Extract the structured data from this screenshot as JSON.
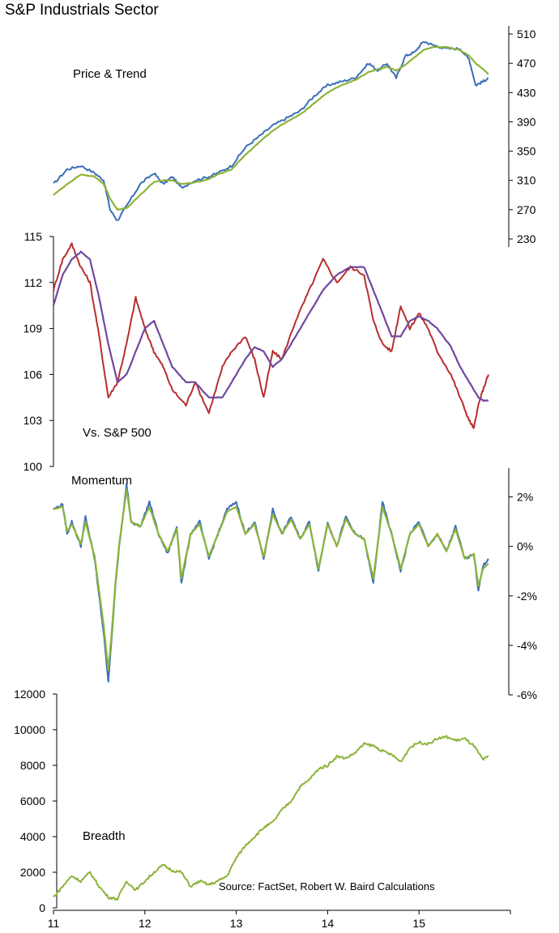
{
  "title": "S&P Industrials Sector",
  "source_note": "Source: FactSet, Robert W. Baird Calculations",
  "colors": {
    "blue": "#3A6EB8",
    "green": "#8DB33A",
    "red": "#B82E2E",
    "purple": "#7048A0",
    "axis": "#000000"
  },
  "x_axis": {
    "ticks": [
      {
        "value": 2011,
        "label": "11"
      },
      {
        "value": 2012,
        "label": "12"
      },
      {
        "value": 2013,
        "label": "13"
      },
      {
        "value": 2014,
        "label": "14"
      },
      {
        "value": 2015,
        "label": "15"
      }
    ],
    "range": [
      2011,
      2016
    ]
  },
  "chart_data": [
    {
      "type": "line",
      "panel": "price",
      "label": "Price & Trend",
      "y_axis_side": "right",
      "ylim": [
        230,
        510
      ],
      "yticks": [
        230,
        270,
        310,
        350,
        390,
        430,
        470,
        510
      ],
      "ytick_labels": [
        "230",
        "270",
        "310",
        "350",
        "390",
        "430",
        "470",
        "510"
      ],
      "x": [
        2011.0,
        2011.15,
        2011.3,
        2011.45,
        2011.55,
        2011.62,
        2011.7,
        2011.8,
        2011.95,
        2012.1,
        2012.2,
        2012.3,
        2012.4,
        2012.55,
        2012.7,
        2012.8,
        2012.95,
        2013.1,
        2013.25,
        2013.4,
        2013.55,
        2013.7,
        2013.85,
        2014.0,
        2014.15,
        2014.3,
        2014.45,
        2014.55,
        2014.65,
        2014.75,
        2014.85,
        2014.95,
        2015.05,
        2015.15,
        2015.3,
        2015.45,
        2015.55,
        2015.62,
        2015.7,
        2015.76
      ],
      "series": [
        {
          "values": [
            305,
            325,
            330,
            320,
            310,
            270,
            255,
            275,
            305,
            320,
            305,
            315,
            300,
            310,
            315,
            320,
            330,
            355,
            370,
            385,
            395,
            405,
            425,
            440,
            445,
            450,
            470,
            460,
            470,
            450,
            480,
            485,
            500,
            495,
            490,
            490,
            475,
            440,
            445,
            450
          ],
          "color_key": "blue"
        },
        {
          "values": [
            290,
            305,
            318,
            315,
            305,
            285,
            270,
            272,
            290,
            308,
            310,
            310,
            305,
            307,
            312,
            318,
            325,
            345,
            362,
            378,
            390,
            400,
            415,
            430,
            440,
            447,
            458,
            462,
            465,
            460,
            468,
            478,
            488,
            492,
            492,
            488,
            480,
            470,
            462,
            455
          ],
          "color_key": "green"
        }
      ]
    },
    {
      "type": "line",
      "panel": "relative",
      "label": "Vs. S&P 500",
      "y_axis_side": "left",
      "ylim": [
        100,
        115
      ],
      "yticks": [
        100,
        103,
        106,
        109,
        112,
        115
      ],
      "ytick_labels": [
        "100",
        "103",
        "106",
        "109",
        "112",
        "115"
      ],
      "x": [
        2011.0,
        2011.1,
        2011.2,
        2011.3,
        2011.4,
        2011.5,
        2011.6,
        2011.7,
        2011.8,
        2011.9,
        2012.0,
        2012.1,
        2012.2,
        2012.3,
        2012.45,
        2012.55,
        2012.7,
        2012.85,
        2012.95,
        2013.1,
        2013.2,
        2013.3,
        2013.4,
        2013.5,
        2013.65,
        2013.8,
        2013.95,
        2014.1,
        2014.25,
        2014.4,
        2014.5,
        2014.6,
        2014.7,
        2014.8,
        2014.9,
        2015.0,
        2015.1,
        2015.2,
        2015.35,
        2015.45,
        2015.55,
        2015.6,
        2015.65,
        2015.7,
        2015.76
      ],
      "series": [
        {
          "values": [
            111.5,
            113.5,
            114.5,
            113.0,
            112.0,
            108.5,
            104.5,
            105.5,
            108.0,
            111.0,
            109.0,
            107.5,
            106.5,
            105.0,
            104.0,
            105.5,
            103.5,
            106.5,
            107.5,
            108.5,
            107.0,
            104.5,
            107.5,
            107.0,
            109.5,
            111.5,
            113.5,
            112.0,
            113.0,
            112.5,
            109.5,
            108.0,
            107.5,
            110.5,
            109.0,
            110.0,
            109.0,
            107.5,
            106.0,
            104.5,
            103.0,
            102.5,
            104.0,
            105.0,
            106.0
          ],
          "color_key": "red"
        },
        {
          "values": [
            110.5,
            112.5,
            113.5,
            114.0,
            113.5,
            111.0,
            108.0,
            105.5,
            106.0,
            107.5,
            109.0,
            109.5,
            108.0,
            106.5,
            105.5,
            105.5,
            104.5,
            104.5,
            105.5,
            107.0,
            107.8,
            107.5,
            106.5,
            107.0,
            108.5,
            110.0,
            111.5,
            112.5,
            113.0,
            113.0,
            111.5,
            110.0,
            108.5,
            108.5,
            109.5,
            109.8,
            109.5,
            109.0,
            107.8,
            106.5,
            105.5,
            105.0,
            104.5,
            104.3,
            104.3
          ],
          "color_key": "purple"
        }
      ]
    },
    {
      "type": "line",
      "panel": "momentum",
      "label": "Momentum",
      "y_axis_side": "right",
      "ylim": [
        -6,
        3
      ],
      "yticks": [
        -6,
        -4,
        -2,
        0,
        2
      ],
      "ytick_labels": [
        "-6%",
        "-4%",
        "-2%",
        "0%",
        "2%"
      ],
      "x": [
        2011.0,
        2011.1,
        2011.15,
        2011.2,
        2011.3,
        2011.35,
        2011.45,
        2011.5,
        2011.55,
        2011.6,
        2011.63,
        2011.68,
        2011.72,
        2011.8,
        2011.85,
        2011.95,
        2012.05,
        2012.15,
        2012.25,
        2012.35,
        2012.4,
        2012.5,
        2012.6,
        2012.7,
        2012.8,
        2012.9,
        2013.0,
        2013.1,
        2013.2,
        2013.3,
        2013.4,
        2013.5,
        2013.6,
        2013.7,
        2013.8,
        2013.9,
        2014.0,
        2014.1,
        2014.2,
        2014.3,
        2014.4,
        2014.5,
        2014.6,
        2014.7,
        2014.8,
        2014.9,
        2015.0,
        2015.1,
        2015.2,
        2015.3,
        2015.4,
        2015.5,
        2015.6,
        2015.65,
        2015.7,
        2015.76
      ],
      "series": [
        {
          "values": [
            1.5,
            1.7,
            0.5,
            1.0,
            0.0,
            1.2,
            -0.5,
            -2.0,
            -3.5,
            -5.5,
            -4.0,
            -1.5,
            0.0,
            2.5,
            1.0,
            0.8,
            1.8,
            0.5,
            -0.3,
            0.8,
            -1.5,
            0.5,
            1.0,
            -0.5,
            0.5,
            1.5,
            1.8,
            0.5,
            1.0,
            -0.5,
            1.5,
            0.5,
            1.2,
            0.3,
            1.0,
            -1.0,
            1.0,
            0.0,
            1.2,
            0.5,
            0.3,
            -1.5,
            1.8,
            0.5,
            -1.0,
            0.5,
            1.0,
            0.0,
            0.5,
            -0.2,
            0.8,
            -0.5,
            -0.3,
            -1.8,
            -0.8,
            -0.5
          ],
          "color_key": "blue"
        },
        {
          "values": [
            1.5,
            1.6,
            0.6,
            0.9,
            0.1,
            1.0,
            -0.4,
            -1.8,
            -3.2,
            -5.0,
            -3.8,
            -1.4,
            0.1,
            2.3,
            1.0,
            0.8,
            1.6,
            0.5,
            -0.2,
            0.7,
            -1.3,
            0.5,
            0.9,
            -0.4,
            0.5,
            1.4,
            1.6,
            0.5,
            0.9,
            -0.4,
            1.3,
            0.5,
            1.1,
            0.3,
            0.9,
            -0.9,
            0.9,
            0.0,
            1.1,
            0.5,
            0.3,
            -1.3,
            1.6,
            0.5,
            -0.9,
            0.5,
            0.9,
            0.0,
            0.5,
            -0.2,
            0.7,
            -0.5,
            -0.3,
            -1.6,
            -0.9,
            -0.7
          ],
          "color_key": "green"
        }
      ]
    },
    {
      "type": "line",
      "panel": "breadth",
      "label": "Breadth",
      "y_axis_side": "left",
      "ylim": [
        0,
        12000
      ],
      "yticks": [
        0,
        2000,
        4000,
        6000,
        8000,
        10000,
        12000
      ],
      "ytick_labels": [
        "0",
        "2000",
        "4000",
        "6000",
        "8000",
        "10000",
        "12000"
      ],
      "x": [
        2011.0,
        2011.1,
        2011.2,
        2011.3,
        2011.4,
        2011.5,
        2011.6,
        2011.7,
        2011.8,
        2011.9,
        2012.0,
        2012.1,
        2012.2,
        2012.3,
        2012.4,
        2012.5,
        2012.6,
        2012.7,
        2012.8,
        2012.9,
        2013.0,
        2013.1,
        2013.2,
        2013.3,
        2013.4,
        2013.5,
        2013.6,
        2013.7,
        2013.8,
        2013.9,
        2014.0,
        2014.1,
        2014.2,
        2014.3,
        2014.4,
        2014.5,
        2014.6,
        2014.7,
        2014.8,
        2014.9,
        2015.0,
        2015.1,
        2015.2,
        2015.3,
        2015.4,
        2015.5,
        2015.6,
        2015.7,
        2015.76
      ],
      "series": [
        {
          "values": [
            600,
            1200,
            1800,
            1500,
            2000,
            1200,
            600,
            500,
            1500,
            1000,
            1500,
            2000,
            2400,
            2100,
            2000,
            1200,
            1500,
            1300,
            1500,
            1800,
            2800,
            3500,
            4000,
            4500,
            4800,
            5500,
            6000,
            6800,
            7200,
            7800,
            8000,
            8500,
            8400,
            8700,
            9200,
            9100,
            8800,
            8600,
            8200,
            9000,
            9300,
            9200,
            9500,
            9600,
            9400,
            9500,
            9100,
            8300,
            8500
          ],
          "color_key": "green"
        }
      ]
    }
  ]
}
